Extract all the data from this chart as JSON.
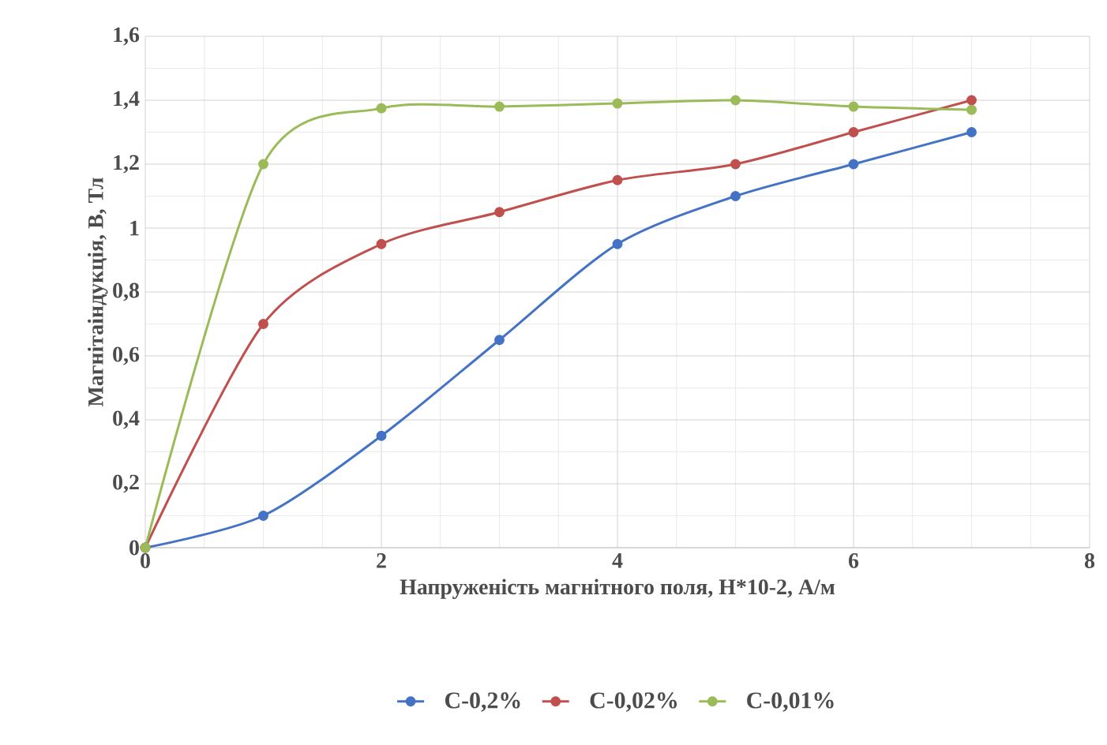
{
  "chart_data": {
    "type": "line",
    "xlabel": "Напруженість магнітного поля, Н*10-2, А/м",
    "ylabel": "Магнітаіндукція, В, Тл",
    "x": [
      0,
      1,
      2,
      3,
      4,
      5,
      6,
      7
    ],
    "series": [
      {
        "name": "C-0,2%",
        "color": "#4472c4",
        "values": [
          0,
          0.1,
          0.35,
          0.65,
          0.95,
          1.1,
          1.2,
          1.3
        ]
      },
      {
        "name": "C-0,02%",
        "color": "#c0504d",
        "values": [
          0,
          0.7,
          0.95,
          1.05,
          1.15,
          1.2,
          1.3,
          1.4
        ]
      },
      {
        "name": "C-0,01%",
        "color": "#9bbb59",
        "values": [
          0,
          1.2,
          1.375,
          1.38,
          1.39,
          1.4,
          1.38,
          1.37
        ]
      }
    ],
    "xlim": [
      0,
      8
    ],
    "xticks": [
      0,
      2,
      4,
      6,
      8
    ],
    "ylim": [
      0,
      1.6
    ],
    "yticks": [
      0,
      {
        "value": 0.2,
        "label": "0,2"
      },
      {
        "value": 0.4,
        "label": "0,4"
      },
      {
        "value": 0.6,
        "label": "0,6"
      },
      {
        "value": 0.8,
        "label": "0,8"
      },
      1,
      {
        "value": 1.2,
        "label": "1,2"
      },
      {
        "value": 1.4,
        "label": "1,4"
      },
      {
        "value": 1.6,
        "label": "1,6"
      }
    ],
    "grid": true,
    "legend": "bottom",
    "marker": "circle",
    "line_style": "solid"
  }
}
